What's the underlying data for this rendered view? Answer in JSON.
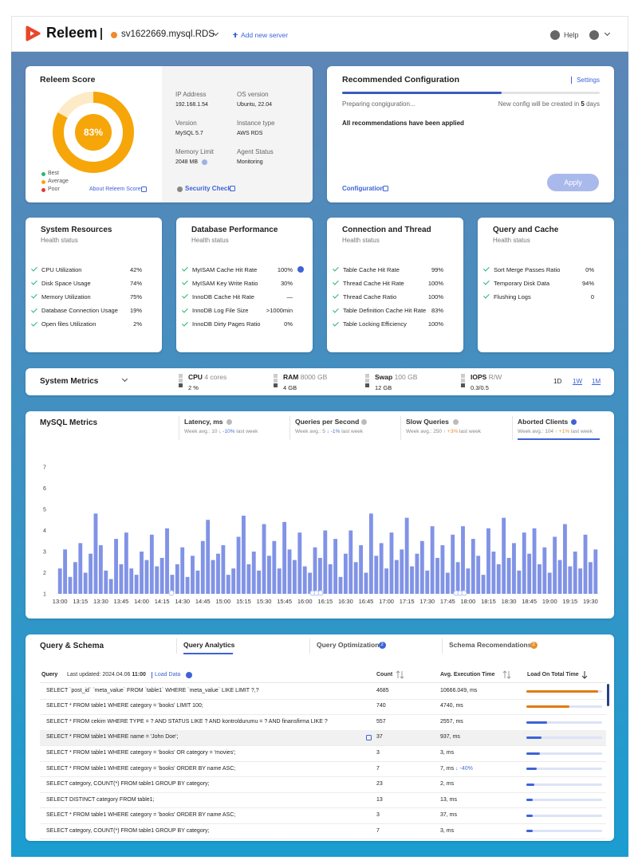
{
  "header": {
    "brand": "Releem",
    "server": "sv1622669.mysql.RDS",
    "add_server": "Add new server",
    "help": "Help"
  },
  "score": {
    "title": "Releem Score",
    "value": 83,
    "value_label": "83%",
    "color": "#f6a609",
    "track_color": "#fdebc8",
    "legend": [
      {
        "name": "Best",
        "color": "#2bb673"
      },
      {
        "name": "Average",
        "color": "#f6a609"
      },
      {
        "name": "Poor",
        "color": "#e53935"
      }
    ],
    "about": "About Releem Score",
    "security": "Security Check",
    "info": [
      {
        "label": "IP Address",
        "value": "192.168.1.54"
      },
      {
        "label": "OS version",
        "value": "Ubuntu, 22.04"
      },
      {
        "label": "Version",
        "value": "MySQL 5.7"
      },
      {
        "label": "Instance type",
        "value": "AWS RDS"
      },
      {
        "label": "Memory Limit",
        "value": "2048 MB"
      },
      {
        "label": "Agent Status",
        "value": "Monitoring"
      }
    ]
  },
  "recommended": {
    "title": "Recommended Configuration",
    "settings": "Settings",
    "progress": 62,
    "preparing": "Preparing congiguration...",
    "new_config": "New config will be created in",
    "days_num": "5",
    "days": "days",
    "status": "All recommendations have been applied",
    "configuration": "Configuration",
    "apply": "Apply"
  },
  "health": [
    {
      "title": "System Resources",
      "subtitle": "Health status",
      "items": [
        {
          "name": "CPU Utilization",
          "value": "42%"
        },
        {
          "name": "Disk Space Usage",
          "value": "74%"
        },
        {
          "name": "Memory Utilization",
          "value": "75%"
        },
        {
          "name": "Database Connection Usage",
          "value": "19%"
        },
        {
          "name": "Open files Utilization",
          "value": "2%"
        }
      ]
    },
    {
      "title": "Database Performance",
      "subtitle": "Health status",
      "items": [
        {
          "name": "MyISAM Cache Hit Rate",
          "value": "100%"
        },
        {
          "name": "MyISAM Key Write Ratio",
          "value": "30%"
        },
        {
          "name": "InnoDB Cache Hit Rate",
          "value": "—"
        },
        {
          "name": "InnoDB Log File Size",
          "value": ">1000min"
        },
        {
          "name": "InnoDB Dirty Pages Ratio",
          "value": "0%"
        }
      ]
    },
    {
      "title": "Connection and Thread",
      "subtitle": "Health status",
      "items": [
        {
          "name": "Table Cache Hit Rate",
          "value": "99%"
        },
        {
          "name": "Thread Cache Hit Rate",
          "value": "100%"
        },
        {
          "name": "Thread Cache Ratio",
          "value": "100%"
        },
        {
          "name": "Table Definition Cache Hit Rate",
          "value": "83%"
        },
        {
          "name": "Table Locking Efficiency",
          "value": "100%"
        }
      ]
    },
    {
      "title": "Query and Cache",
      "subtitle": "Health status",
      "items": [
        {
          "name": "Sort Merge Passes Ratio",
          "value": "0%"
        },
        {
          "name": "Temporary Disk Data",
          "value": "94%"
        },
        {
          "name": "Flushing Logs",
          "value": "0"
        }
      ]
    }
  ],
  "system_metrics": {
    "title": "System Metrics",
    "metrics": [
      {
        "name": "CPU",
        "detail": "4 cores",
        "value": "2 %"
      },
      {
        "name": "RAM",
        "detail": "8000 GB",
        "value": "4 GB"
      },
      {
        "name": "Swap",
        "detail": "100 GB",
        "value": "12 GB"
      },
      {
        "name": "IOPS",
        "detail": "R/W",
        "value": "0.3/0.5"
      }
    ],
    "ranges": [
      "1D",
      "1W",
      "1M"
    ]
  },
  "mysql_metrics": {
    "title": "MySQL Metrics",
    "tabs": [
      {
        "name": "Latency, ms",
        "avg": "Week avg.: 10",
        "change": "↓ -10%",
        "suffix": "last week"
      },
      {
        "name": "Queries per Second",
        "avg": "Week avg.: 5",
        "change": "↓ -1%",
        "suffix": "last week"
      },
      {
        "name": "Slow Queries",
        "avg": "Week avg.: 250",
        "change": "↑ +3%",
        "suffix": "last week"
      },
      {
        "name": "Aborted Clients",
        "avg": "Week avg.: 104",
        "change": "↑ +1%",
        "suffix": "last week"
      }
    ]
  },
  "chart_data": {
    "type": "bar",
    "color": "#8193e6",
    "categories": [
      "13:00",
      null,
      null,
      null,
      "13:15",
      null,
      null,
      null,
      "13:30",
      null,
      null,
      null,
      "13:45",
      null,
      null,
      null,
      "14:00",
      null,
      null,
      null,
      "14:15",
      null,
      null,
      null,
      "14:30",
      null,
      null,
      null,
      "14:45",
      null,
      null,
      null,
      "15:00",
      null,
      null,
      null,
      "15:15",
      null,
      null,
      null,
      "15:30",
      null,
      null,
      null,
      "15:45",
      null,
      null,
      null,
      "16:00",
      null,
      null,
      null,
      "16:15",
      null,
      null,
      null,
      "16:30",
      null,
      null,
      null,
      "16:45",
      null,
      null,
      null,
      "17:00",
      null,
      null,
      null,
      "17:15",
      null,
      null,
      null,
      "17:30",
      null,
      null,
      null,
      "17:45",
      null,
      null,
      null,
      "18:00",
      null,
      null,
      null,
      "18:15",
      null,
      null,
      null,
      "18:30",
      null,
      null,
      null,
      "18:45",
      null,
      null,
      null,
      "19:00",
      null,
      null,
      null,
      "19:15",
      null,
      null,
      null,
      "19:30",
      null
    ],
    "values": [
      2.2,
      3.1,
      1.8,
      2.5,
      3.4,
      2.0,
      2.9,
      4.8,
      3.3,
      2.1,
      1.7,
      3.6,
      2.4,
      3.9,
      2.2,
      1.9,
      3.0,
      2.6,
      3.8,
      2.3,
      2.7,
      4.1,
      1.9,
      2.4,
      3.2,
      1.8,
      2.8,
      2.1,
      3.5,
      4.5,
      2.6,
      2.9,
      3.3,
      1.9,
      2.2,
      3.7,
      4.7,
      2.4,
      3.0,
      2.1,
      4.3,
      2.8,
      3.5,
      2.2,
      4.4,
      3.1,
      2.6,
      3.9,
      2.3,
      2.0,
      3.2,
      2.7,
      4.0,
      2.4,
      3.6,
      1.8,
      2.9,
      4.0,
      2.5,
      3.3,
      2.0,
      4.8,
      2.8,
      3.4,
      2.2,
      3.9,
      2.6,
      3.1,
      4.6,
      2.3,
      2.9,
      3.5,
      2.1,
      4.2,
      2.7,
      3.3,
      2.0,
      3.8,
      2.5,
      4.2,
      2.2,
      3.6,
      2.8,
      1.9,
      4.1,
      3.0,
      2.4,
      4.6,
      2.7,
      3.4,
      2.1,
      3.9,
      2.9,
      4.1,
      2.4,
      3.2,
      2.0,
      3.7,
      2.6,
      4.3,
      2.3,
      3.0,
      2.2,
      3.8,
      2.5,
      3.1
    ],
    "ylim": [
      1,
      7
    ],
    "yticks": [
      1,
      2,
      3,
      4,
      5,
      6,
      7
    ]
  },
  "query": {
    "title": "Query & Schema",
    "tabs": [
      {
        "name": "Query Analytics"
      },
      {
        "name": "Query Optimization",
        "badge": "2",
        "badge_color": "#3e63d6"
      },
      {
        "name": "Schema Recomendations",
        "badge": "2",
        "badge_color": "#e8912a"
      }
    ],
    "col_query": "Query",
    "updated": "Last updated: 2024.04.06",
    "updated_time": "11:00",
    "load_data": "Load Data",
    "columns": [
      "Count",
      "Avg. Execution Time",
      "Load On Total Time"
    ],
    "rows": [
      {
        "query": "SELECT `post_id` `meta_value` FROM `table1` WHERE `meta_value` LIKE LIMIT ?,?",
        "count": "4685",
        "time": "10666.049, ms",
        "load": 95,
        "color": "#e07b14"
      },
      {
        "query": "SELECT * FROM table1 WHERE category = 'books' LIMIT 100;",
        "count": "740",
        "time": "4740, ms",
        "load": 57,
        "color": "#e07b14"
      },
      {
        "query": "SELECT * FROM cekim WHERE TYPE = ? AND STATUS LIKE ? AND kontroldurumu = ? AND finansfirma LIKE ?",
        "count": "557",
        "time": "2557, ms",
        "load": 27,
        "color": "#3e63d6"
      },
      {
        "query": "SELECT * FROM table1 WHERE name = 'John Doe';",
        "count": "37",
        "time": "937, ms",
        "load": 20,
        "color": "#3e63d6"
      },
      {
        "query": "SELECT * FROM table1 WHERE category = 'books' OR category = 'movies';",
        "count": "3",
        "time": "3, ms",
        "load": 18,
        "color": "#3e63d6"
      },
      {
        "query": "SELECT * FROM table1 WHERE category = 'books' ORDER BY name ASC;",
        "count": "7",
        "time": "7, ms",
        "change": "↓ -40%",
        "load": 14,
        "color": "#3e63d6"
      },
      {
        "query": "SELECT category, COUNT(*) FROM table1 GROUP BY category;",
        "count": "23",
        "time": "2, ms",
        "load": 10,
        "color": "#3e63d6"
      },
      {
        "query": "SELECT DISTINCT category FROM table1;",
        "count": "13",
        "time": "13, ms",
        "load": 8,
        "color": "#3e63d6"
      },
      {
        "query": "SELECT * FROM table1 WHERE category = 'books' ORDER BY name ASC;",
        "count": "3",
        "time": "37, ms",
        "load": 8,
        "color": "#3e63d6"
      },
      {
        "query": "SELECT category, COUNT(*) FROM table1 GROUP BY category;",
        "count": "7",
        "time": "3, ms",
        "load": 8,
        "color": "#3e63d6"
      }
    ]
  }
}
